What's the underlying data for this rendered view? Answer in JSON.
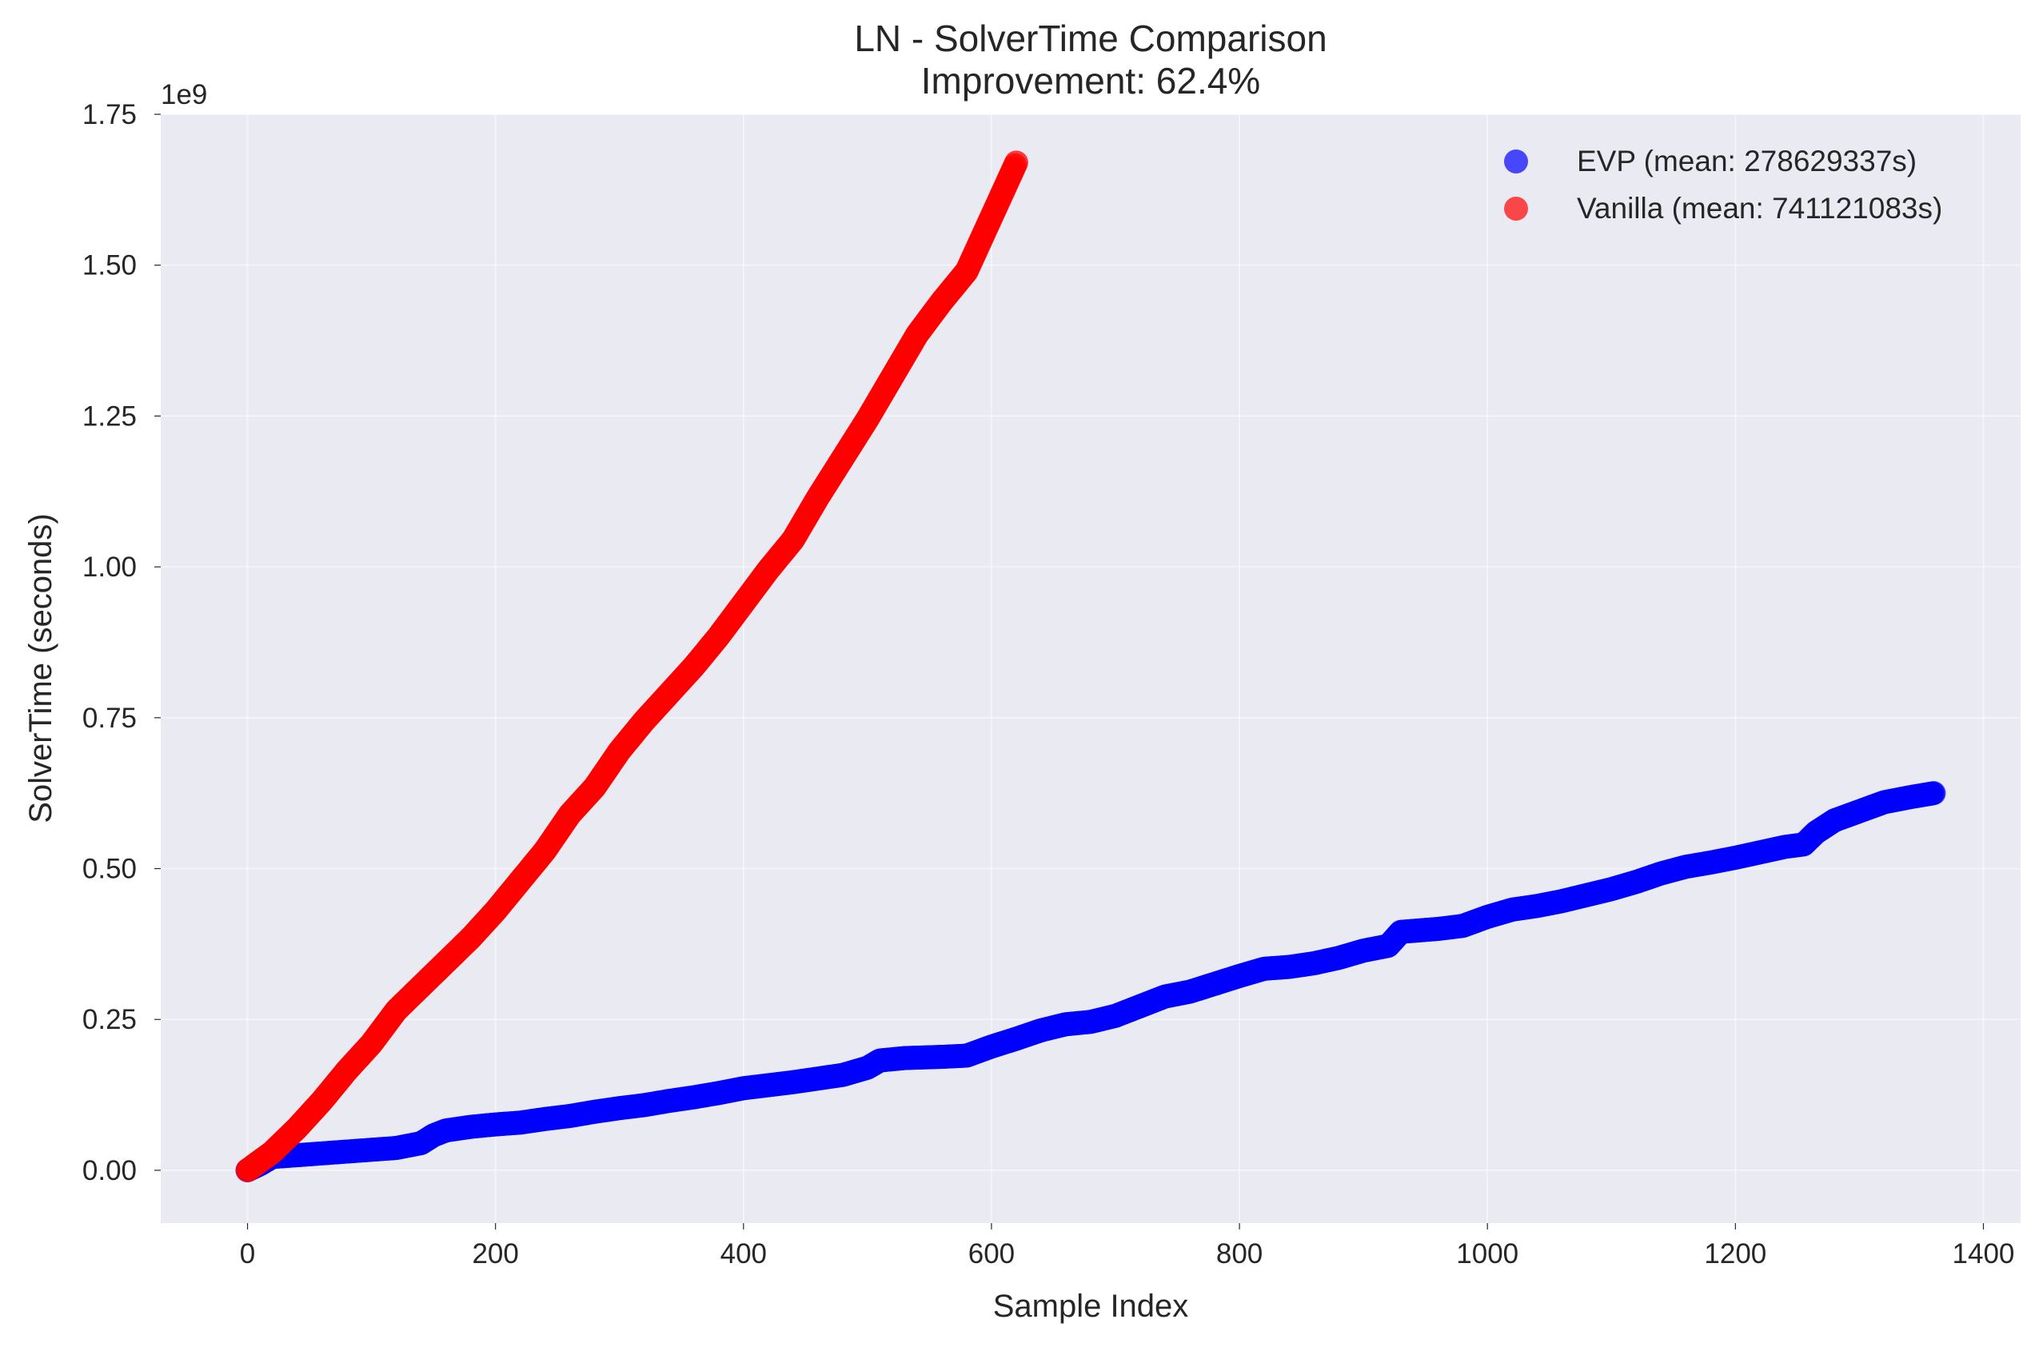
{
  "chart_data": {
    "type": "scatter",
    "title": "LN - SolverTime Comparison",
    "subtitle": "Improvement: 62.4%",
    "xlabel": "Sample Index",
    "ylabel": "SolverTime (seconds)",
    "y_offset_label": "1e9",
    "xlim": [
      -70,
      1430
    ],
    "ylim": [
      -0.0875,
      1.75
    ],
    "y_scale_factor": 1000000000,
    "x_ticks": [
      0,
      200,
      400,
      600,
      800,
      1000,
      1200,
      1400
    ],
    "x_tick_labels": [
      "0",
      "200",
      "400",
      "600",
      "800",
      "1000",
      "1200",
      "1400"
    ],
    "y_ticks": [
      0.0,
      0.25,
      0.5,
      0.75,
      1.0,
      1.25,
      1.5,
      1.75
    ],
    "y_tick_labels": [
      "0.00",
      "0.25",
      "0.50",
      "0.75",
      "1.00",
      "1.25",
      "1.50",
      "1.75"
    ],
    "grid": true,
    "legend_position": "top-right",
    "series": [
      {
        "name": "EVP (mean: 278629337s)",
        "color": "#0000ff",
        "marker": "circle",
        "points": [
          [
            0,
            0.0
          ],
          [
            10,
            0.01
          ],
          [
            20,
            0.022
          ],
          [
            40,
            0.025
          ],
          [
            60,
            0.028
          ],
          [
            80,
            0.031
          ],
          [
            100,
            0.034
          ],
          [
            120,
            0.037
          ],
          [
            140,
            0.045
          ],
          [
            150,
            0.058
          ],
          [
            160,
            0.066
          ],
          [
            180,
            0.072
          ],
          [
            200,
            0.076
          ],
          [
            220,
            0.079
          ],
          [
            240,
            0.085
          ],
          [
            260,
            0.09
          ],
          [
            280,
            0.097
          ],
          [
            300,
            0.103
          ],
          [
            320,
            0.108
          ],
          [
            340,
            0.115
          ],
          [
            360,
            0.121
          ],
          [
            380,
            0.128
          ],
          [
            400,
            0.136
          ],
          [
            420,
            0.141
          ],
          [
            440,
            0.146
          ],
          [
            460,
            0.152
          ],
          [
            480,
            0.158
          ],
          [
            500,
            0.17
          ],
          [
            510,
            0.182
          ],
          [
            530,
            0.186
          ],
          [
            560,
            0.188
          ],
          [
            580,
            0.19
          ],
          [
            600,
            0.205
          ],
          [
            620,
            0.218
          ],
          [
            640,
            0.232
          ],
          [
            660,
            0.242
          ],
          [
            680,
            0.246
          ],
          [
            700,
            0.256
          ],
          [
            720,
            0.272
          ],
          [
            740,
            0.288
          ],
          [
            760,
            0.296
          ],
          [
            780,
            0.309
          ],
          [
            800,
            0.322
          ],
          [
            820,
            0.334
          ],
          [
            840,
            0.337
          ],
          [
            860,
            0.343
          ],
          [
            880,
            0.352
          ],
          [
            900,
            0.364
          ],
          [
            920,
            0.372
          ],
          [
            930,
            0.395
          ],
          [
            960,
            0.4
          ],
          [
            980,
            0.405
          ],
          [
            1000,
            0.42
          ],
          [
            1020,
            0.432
          ],
          [
            1040,
            0.438
          ],
          [
            1060,
            0.446
          ],
          [
            1080,
            0.456
          ],
          [
            1100,
            0.466
          ],
          [
            1120,
            0.478
          ],
          [
            1140,
            0.492
          ],
          [
            1160,
            0.503
          ],
          [
            1180,
            0.51
          ],
          [
            1200,
            0.518
          ],
          [
            1220,
            0.527
          ],
          [
            1240,
            0.536
          ],
          [
            1255,
            0.54
          ],
          [
            1265,
            0.56
          ],
          [
            1280,
            0.58
          ],
          [
            1300,
            0.595
          ],
          [
            1320,
            0.61
          ],
          [
            1340,
            0.618
          ],
          [
            1360,
            0.625
          ]
        ]
      },
      {
        "name": "Vanilla (mean: 741121083s)",
        "color": "#ff0000",
        "marker": "circle",
        "points": [
          [
            0,
            0.0
          ],
          [
            20,
            0.03
          ],
          [
            40,
            0.07
          ],
          [
            60,
            0.115
          ],
          [
            80,
            0.165
          ],
          [
            100,
            0.21
          ],
          [
            120,
            0.265
          ],
          [
            140,
            0.305
          ],
          [
            160,
            0.345
          ],
          [
            180,
            0.385
          ],
          [
            200,
            0.43
          ],
          [
            220,
            0.48
          ],
          [
            240,
            0.53
          ],
          [
            260,
            0.59
          ],
          [
            280,
            0.635
          ],
          [
            300,
            0.695
          ],
          [
            320,
            0.745
          ],
          [
            340,
            0.79
          ],
          [
            360,
            0.835
          ],
          [
            380,
            0.885
          ],
          [
            400,
            0.94
          ],
          [
            420,
            0.995
          ],
          [
            440,
            1.045
          ],
          [
            460,
            1.115
          ],
          [
            480,
            1.18
          ],
          [
            500,
            1.245
          ],
          [
            520,
            1.315
          ],
          [
            540,
            1.385
          ],
          [
            560,
            1.44
          ],
          [
            580,
            1.49
          ],
          [
            600,
            1.58
          ],
          [
            620,
            1.67
          ]
        ]
      }
    ]
  }
}
